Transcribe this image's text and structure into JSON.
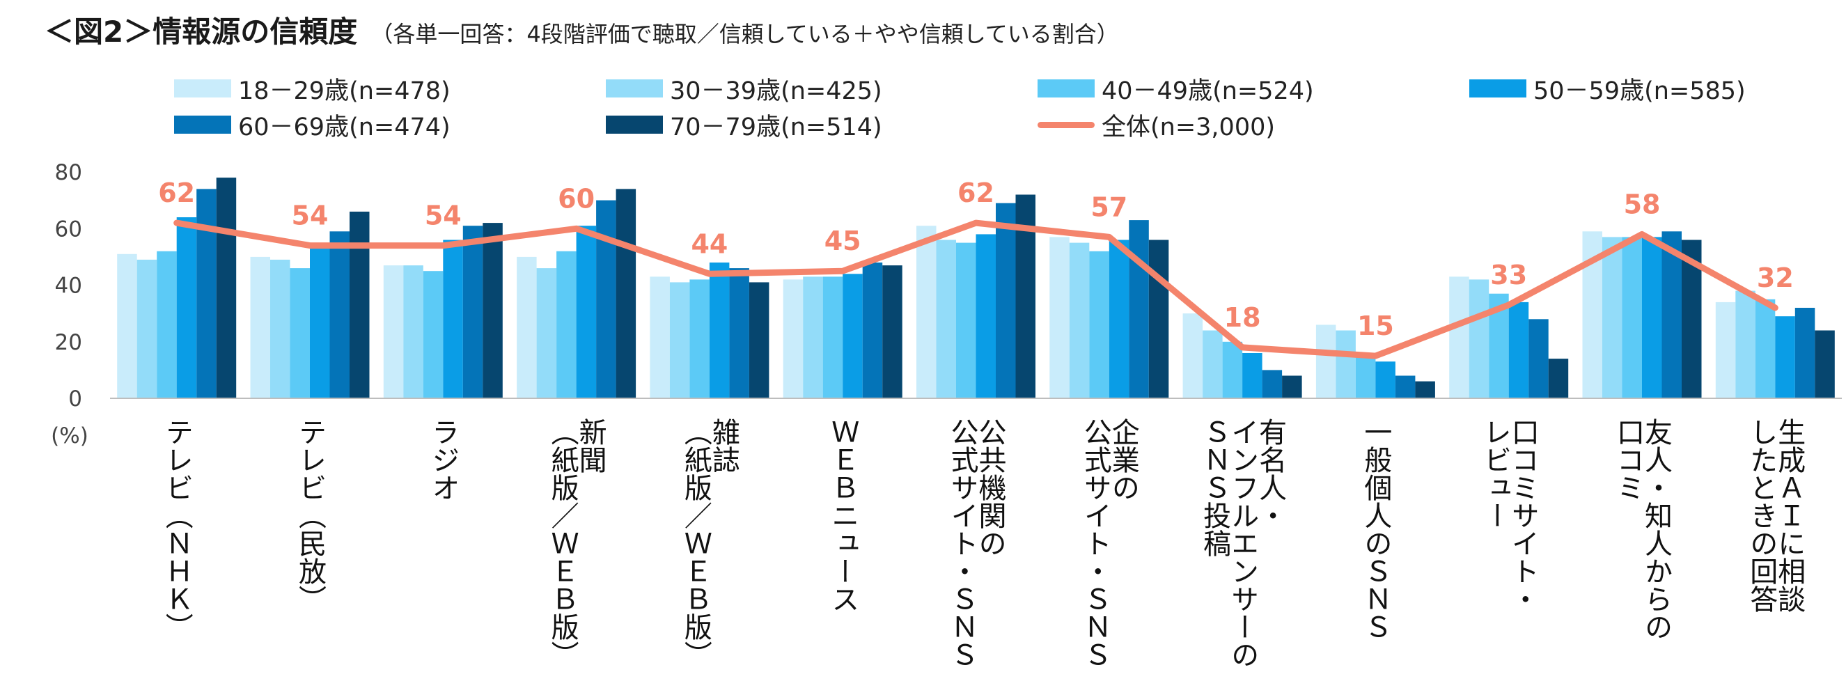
{
  "title": {
    "main": "＜図2＞情報源の信頼度",
    "sub": "（各単一回答：4段階評価で聴取／信頼している＋やや信頼している割合）"
  },
  "chart_data": {
    "type": "bar",
    "unit_label": "(%)",
    "ylim": [
      0,
      80
    ],
    "yticks": [
      0,
      20,
      40,
      60,
      80
    ],
    "grid": false,
    "legend_position": "top",
    "categories": [
      "テレビ（ＮＨＫ）",
      "テレビ（民放）",
      "ラジオ",
      "新聞（紙版／ＷＥＢ版）",
      "雑誌（紙版／ＷＥＢ版）",
      "ＷＥＢニュース",
      "公共機関の公式サイト・ＳＮＳ",
      "企業の公式サイト・ＳＮＳ",
      "有名人・インフルエンサーのＳＮＳ投稿",
      "一般個人のＳＮＳ",
      "口コミサイト・レビュー",
      "友人・知人からの口コミ",
      "生成ＡＩに相談したときの回答"
    ],
    "category_lines": [
      [
        "テレビ（ＮＨＫ）"
      ],
      [
        "テレビ（民放）"
      ],
      [
        "ラジオ"
      ],
      [
        "新聞",
        "（紙版／ＷＥＢ版）"
      ],
      [
        "雑誌",
        "（紙版／ＷＥＢ版）"
      ],
      [
        "ＷＥＢニュース"
      ],
      [
        "公共機関の",
        "公式サイト・ＳＮＳ"
      ],
      [
        "企業の",
        "公式サイト・ＳＮＳ"
      ],
      [
        "有名人・",
        "インフルエンサーの",
        "ＳＮＳ投稿"
      ],
      [
        "一般個人のＳＮＳ"
      ],
      [
        "口コミサイト・",
        "レビュー"
      ],
      [
        "友人・知人からの",
        "口コミ"
      ],
      [
        "生成ＡＩに相談",
        "したときの回答"
      ]
    ],
    "series": [
      {
        "name": "18－29歳(n=478)",
        "color": "#c9ecfb",
        "values": [
          51,
          50,
          47,
          50,
          43,
          42,
          61,
          57,
          30,
          26,
          43,
          59,
          34
        ]
      },
      {
        "name": "30－39歳(n=425)",
        "color": "#93dcf9",
        "values": [
          49,
          49,
          47,
          46,
          41,
          43,
          56,
          55,
          24,
          24,
          42,
          57,
          38
        ]
      },
      {
        "name": "40－49歳(n=524)",
        "color": "#5ccaf6",
        "values": [
          52,
          46,
          45,
          52,
          42,
          43,
          55,
          52,
          20,
          15,
          37,
          57,
          35
        ]
      },
      {
        "name": "50－59歳(n=585)",
        "color": "#0a9de6",
        "values": [
          64,
          54,
          56,
          61,
          48,
          44,
          58,
          56,
          16,
          13,
          34,
          57,
          29
        ]
      },
      {
        "name": "60－69歳(n=474)",
        "color": "#0474b8",
        "values": [
          74,
          59,
          61,
          70,
          46,
          48,
          69,
          63,
          10,
          8,
          28,
          59,
          32
        ]
      },
      {
        "name": "70－79歳(n=514)",
        "color": "#06466f",
        "values": [
          78,
          66,
          62,
          74,
          41,
          47,
          72,
          56,
          8,
          6,
          14,
          56,
          24
        ]
      }
    ],
    "total": {
      "name": "全体(n=3,000)",
      "color": "#f4846c",
      "type": "line",
      "values": [
        62,
        54,
        54,
        60,
        44,
        45,
        62,
        57,
        18,
        15,
        33,
        58,
        32
      ]
    }
  }
}
